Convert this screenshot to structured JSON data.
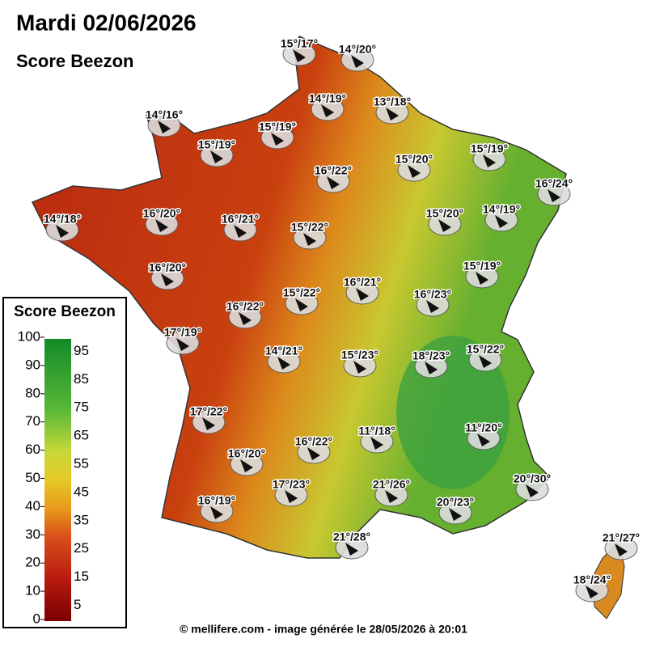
{
  "header": {
    "title": "Mardi 02/06/2026",
    "subtitle": "Score Beezon"
  },
  "legend": {
    "title": "Score Beezon",
    "left_ticks": [
      0,
      10,
      20,
      30,
      40,
      50,
      60,
      70,
      80,
      90,
      100
    ],
    "right_ticks": [
      5,
      15,
      25,
      35,
      45,
      55,
      65,
      75,
      85,
      95
    ]
  },
  "stations": [
    "15°/17°",
    "14°/20°",
    "14°/16°",
    "14°/19°",
    "13°/18°",
    "15°/19°",
    "15°/19°",
    "15°/19°",
    "15°/20°",
    "16°/22°",
    "16°/24°",
    "14°/18°",
    "16°/20°",
    "16°/21°",
    "15°/22°",
    "15°/20°",
    "14°/19°",
    "16°/20°",
    "15°/19°",
    "16°/21°",
    "15°/22°",
    "16°/23°",
    "16°/22°",
    "17°/19°",
    "14°/21°",
    "15°/23°",
    "18°/23°",
    "15°/22°",
    "17°/22°",
    "11°/18°",
    "11°/20°",
    "16°/22°",
    "16°/20°",
    "21°/26°",
    "17°/23°",
    "20°/30°",
    "16°/19°",
    "20°/23°",
    "21°/28°",
    "21°/27°",
    "18°/24°"
  ],
  "footer": "© mellifere.com - image générée le 28/05/2026 à 20:01"
}
